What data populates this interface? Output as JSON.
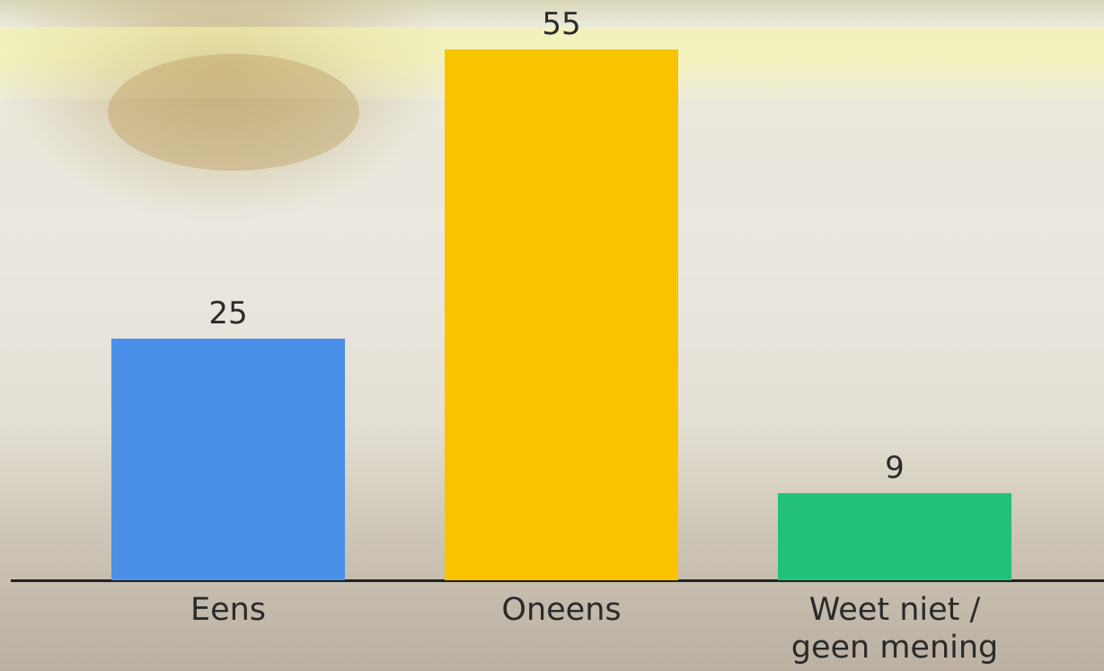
{
  "chart_data": {
    "type": "bar",
    "categories": [
      "Eens",
      "Oneens",
      "Weet niet / geen mening"
    ],
    "values": [
      25,
      55,
      9
    ],
    "colors": [
      "#4a90e8",
      "#f9c300",
      "#22c07a"
    ]
  }
}
